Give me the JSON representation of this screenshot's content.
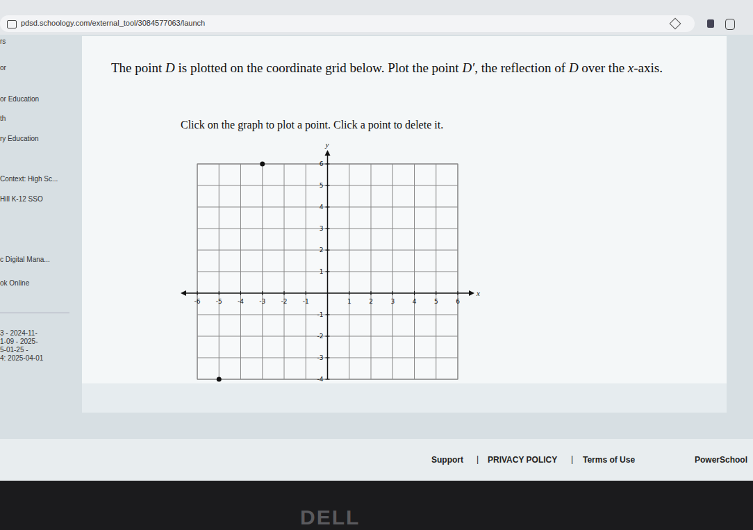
{
  "browser": {
    "url": "pdsd.schoology.com/external_tool/3084577063/launch"
  },
  "sidebar": [
    "rs",
    "or",
    "or Education",
    "th",
    "ry Education",
    "Context: High Sc...",
    "Hill K-12 SSO",
    "c Digital Mana...",
    "ok Online",
    "3 - 2024-11-",
    "1-09 - 2025-",
    "5-01-25 -",
    "4: 2025-04-01"
  ],
  "question": {
    "segments": [
      "The point ",
      "D",
      " is plotted on the coordinate grid below. Plot the point ",
      "D′",
      ", the reflection of ",
      "D",
      " over the ",
      "x",
      "-axis."
    ],
    "instruction": "Click on the graph to plot a point. Click a point to delete it."
  },
  "chart_data": {
    "type": "scatter",
    "x_label": "x",
    "y_label": "y",
    "x": [
      -3,
      -5
    ],
    "values": [
      6,
      -4
    ],
    "color": "#111111",
    "marker": "circle",
    "xlim": [
      -6,
      6
    ],
    "ylim": [
      -4,
      6
    ],
    "xticks": [
      -6,
      -5,
      -4,
      -3,
      -2,
      -1,
      1,
      2,
      3,
      4,
      5,
      6
    ],
    "yticks": [
      -4,
      -3,
      -2,
      -1,
      1,
      2,
      3,
      4,
      5,
      6
    ],
    "grid": true
  },
  "footer": {
    "links": [
      "Support",
      "PRIVACY POLICY",
      "Terms of Use"
    ],
    "separator": "|",
    "brand": "PowerSchool"
  },
  "bezel_logo": "DELL"
}
